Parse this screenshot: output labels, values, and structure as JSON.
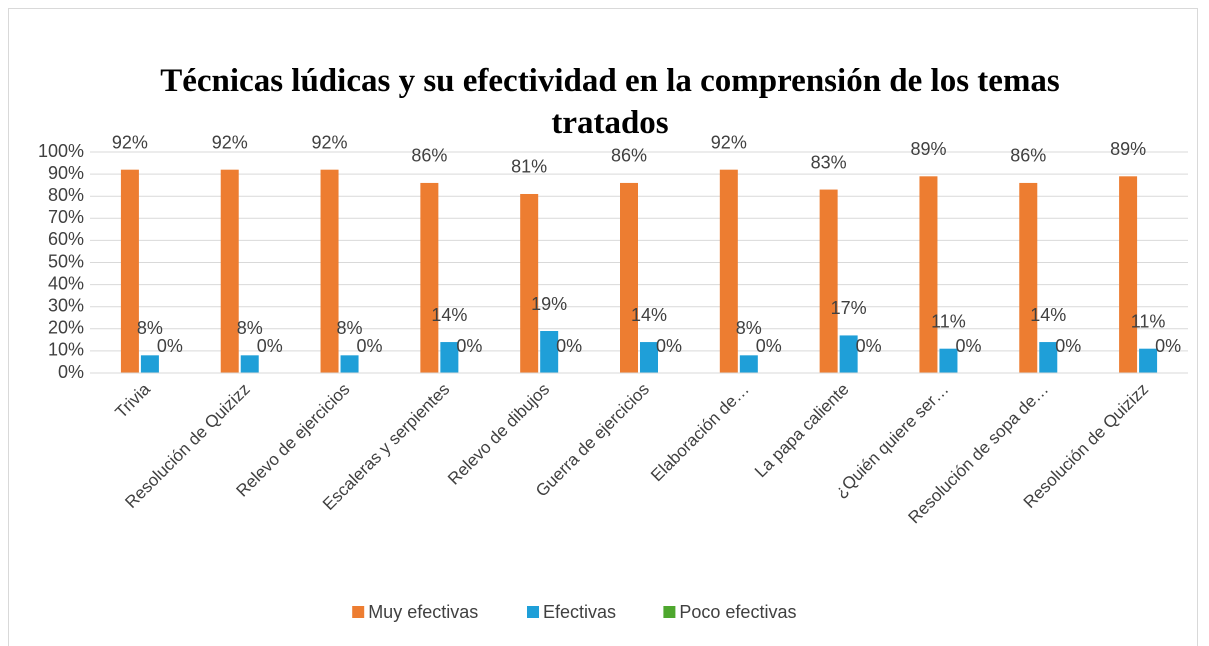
{
  "chart_data": {
    "type": "bar",
    "title": "Técnicas lúdicas y su efectividad en la comprensión de los temas tratados",
    "categories": [
      "Trivia",
      "Resolución de Quizizz",
      "Relevo de ejercicios",
      "Escaleras y serpientes",
      "Relevo de dibujos",
      "Guerra de ejercicios",
      "Elaboración de…",
      "La papa caliente",
      "¿Quién quiere ser…",
      "Resolución de sopa de…",
      "Resolución de Quizizz"
    ],
    "series": [
      {
        "name": "Muy efectivas",
        "color": "#ed7d31",
        "values": [
          92,
          92,
          92,
          86,
          81,
          86,
          92,
          83,
          89,
          86,
          89
        ],
        "value_labels": [
          "92%",
          "92%",
          "92%",
          "86%",
          "81%",
          "86%",
          "92%",
          "83%",
          "89%",
          "86%",
          "89%"
        ]
      },
      {
        "name": "Efectivas",
        "color": "#1f9fd8",
        "values": [
          8,
          8,
          8,
          14,
          19,
          14,
          8,
          17,
          11,
          14,
          11
        ],
        "value_labels": [
          "8%",
          "8%",
          "8%",
          "14%",
          "19%",
          "14%",
          "8%",
          "17%",
          "11%",
          "14%",
          "11%"
        ]
      },
      {
        "name": "Poco efectivas",
        "color": "#4ea72e",
        "values": [
          0,
          0,
          0,
          0,
          0,
          0,
          0,
          0,
          0,
          0,
          0
        ],
        "value_labels": [
          "0%",
          "0%",
          "0%",
          "0%",
          "0%",
          "0%",
          "0%",
          "0%",
          "0%",
          "0%",
          "0%"
        ]
      }
    ],
    "ylim": [
      0,
      100
    ],
    "yticks": [
      {
        "value": 0,
        "label": "0%"
      },
      {
        "value": 10,
        "label": "10%"
      },
      {
        "value": 20,
        "label": "20%"
      },
      {
        "value": 30,
        "label": "30%"
      },
      {
        "value": 40,
        "label": "40%"
      },
      {
        "value": 50,
        "label": "50%"
      },
      {
        "value": 60,
        "label": "60%"
      },
      {
        "value": 70,
        "label": "70%"
      },
      {
        "value": 80,
        "label": "80%"
      },
      {
        "value": 90,
        "label": "90%"
      },
      {
        "value": 100,
        "label": "100%"
      }
    ],
    "grid": true,
    "legend": "bottom"
  }
}
